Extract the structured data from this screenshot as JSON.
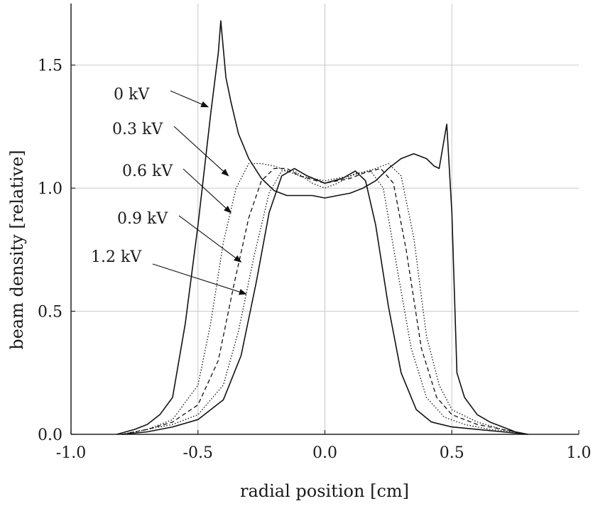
{
  "chart_data": {
    "type": "line",
    "xlabel": "radial position  [cm]",
    "ylabel": "beam density  [relative]",
    "xlim": [
      -1.0,
      1.0
    ],
    "ylim": [
      0.0,
      1.75
    ],
    "xticks": [
      "-1.0",
      "-0.5",
      "0.0",
      "0.5",
      "1.0"
    ],
    "yticks": [
      "0.0",
      "0.5",
      "1.0",
      "1.5"
    ],
    "xtick_values": [
      -1.0,
      -0.5,
      0.0,
      0.5,
      1.0
    ],
    "ytick_values": [
      0.0,
      0.5,
      1.0,
      1.5
    ],
    "grid": true,
    "series": [
      {
        "name": "0 kV",
        "style": "solid",
        "x": [
          -0.82,
          -0.75,
          -0.7,
          -0.65,
          -0.6,
          -0.55,
          -0.5,
          -0.45,
          -0.42,
          -0.41,
          -0.39,
          -0.37,
          -0.34,
          -0.3,
          -0.25,
          -0.2,
          -0.15,
          -0.1,
          -0.05,
          0.0,
          0.05,
          0.1,
          0.15,
          0.2,
          0.25,
          0.3,
          0.35,
          0.4,
          0.43,
          0.45,
          0.47,
          0.48,
          0.5,
          0.52,
          0.55,
          0.6,
          0.65,
          0.7,
          0.75,
          0.8
        ],
        "y": [
          0.0,
          0.02,
          0.04,
          0.08,
          0.15,
          0.45,
          0.85,
          1.3,
          1.55,
          1.68,
          1.45,
          1.35,
          1.22,
          1.12,
          1.04,
          0.99,
          0.97,
          0.97,
          0.97,
          0.96,
          0.97,
          0.98,
          1.0,
          1.03,
          1.08,
          1.12,
          1.14,
          1.12,
          1.09,
          1.08,
          1.2,
          1.26,
          0.9,
          0.25,
          0.15,
          0.08,
          0.05,
          0.03,
          0.01,
          0.0
        ]
      },
      {
        "name": "0.3 kV",
        "style": "dotted",
        "x": [
          -0.8,
          -0.7,
          -0.6,
          -0.5,
          -0.45,
          -0.4,
          -0.35,
          -0.3,
          -0.25,
          -0.2,
          -0.1,
          0.0,
          0.1,
          0.2,
          0.25,
          0.3,
          0.35,
          0.4,
          0.45,
          0.5,
          0.6,
          0.7,
          0.8
        ],
        "y": [
          0.0,
          0.02,
          0.06,
          0.2,
          0.45,
          0.78,
          1.0,
          1.1,
          1.1,
          1.09,
          1.05,
          1.03,
          1.05,
          1.08,
          1.1,
          1.05,
          0.8,
          0.4,
          0.2,
          0.1,
          0.05,
          0.02,
          0.0
        ]
      },
      {
        "name": "0.6 kV",
        "style": "dashed",
        "x": [
          -0.8,
          -0.7,
          -0.6,
          -0.5,
          -0.42,
          -0.36,
          -0.3,
          -0.25,
          -0.2,
          -0.15,
          -0.1,
          0.0,
          0.1,
          0.15,
          0.22,
          0.27,
          0.32,
          0.38,
          0.44,
          0.5,
          0.6,
          0.7,
          0.8
        ],
        "y": [
          0.0,
          0.02,
          0.05,
          0.12,
          0.3,
          0.6,
          0.88,
          1.03,
          1.08,
          1.08,
          1.05,
          1.02,
          1.04,
          1.06,
          1.08,
          1.02,
          0.75,
          0.35,
          0.15,
          0.08,
          0.04,
          0.02,
          0.0
        ]
      },
      {
        "name": "0.9 kV",
        "style": "dotted",
        "x": [
          -0.8,
          -0.7,
          -0.6,
          -0.5,
          -0.4,
          -0.34,
          -0.28,
          -0.22,
          -0.17,
          -0.12,
          -0.05,
          0.0,
          0.05,
          0.12,
          0.18,
          0.23,
          0.28,
          0.34,
          0.4,
          0.47,
          0.55,
          0.65,
          0.75,
          0.8
        ],
        "y": [
          0.0,
          0.02,
          0.04,
          0.08,
          0.2,
          0.42,
          0.72,
          0.98,
          1.07,
          1.07,
          1.02,
          1.0,
          1.02,
          1.06,
          1.07,
          1.0,
          0.7,
          0.35,
          0.15,
          0.07,
          0.04,
          0.02,
          0.01,
          0.0
        ]
      },
      {
        "name": "1.2 kV",
        "style": "solid",
        "x": [
          -0.8,
          -0.7,
          -0.6,
          -0.5,
          -0.4,
          -0.33,
          -0.27,
          -0.22,
          -0.17,
          -0.12,
          -0.07,
          0.0,
          0.07,
          0.12,
          0.16,
          0.2,
          0.25,
          0.3,
          0.36,
          0.42,
          0.5,
          0.6,
          0.7,
          0.8
        ],
        "y": [
          0.0,
          0.01,
          0.03,
          0.06,
          0.14,
          0.32,
          0.62,
          0.9,
          1.05,
          1.08,
          1.05,
          1.02,
          1.04,
          1.07,
          1.03,
          0.85,
          0.52,
          0.25,
          0.1,
          0.05,
          0.03,
          0.02,
          0.01,
          0.0
        ]
      }
    ],
    "annotations": [
      {
        "text": "0 kV",
        "points_to": {
          "x": -0.46,
          "y": 1.33
        }
      },
      {
        "text": "0.3 kV",
        "points_to": {
          "x": -0.38,
          "y": 1.05
        }
      },
      {
        "text": "0.6 kV",
        "points_to": {
          "x": -0.37,
          "y": 0.9
        }
      },
      {
        "text": "0.9 kV",
        "points_to": {
          "x": -0.33,
          "y": 0.7
        }
      },
      {
        "text": "1.2 kV",
        "points_to": {
          "x": -0.31,
          "y": 0.57
        }
      }
    ]
  }
}
